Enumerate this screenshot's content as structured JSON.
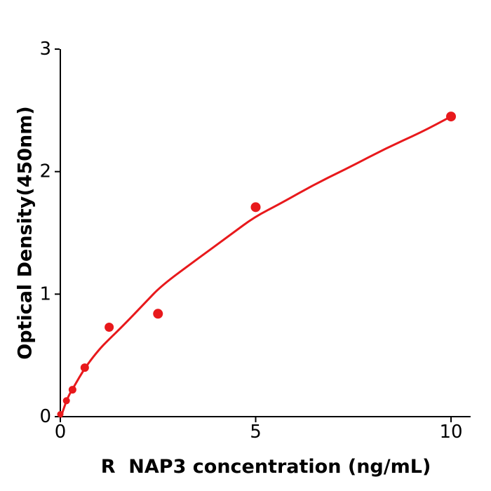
{
  "chart_data": {
    "type": "scatter",
    "title": "",
    "xlabel": "R  NAP3 concentration (ng/mL)",
    "ylabel": "Optical Density(450nm)",
    "xlim": [
      0,
      10.5
    ],
    "ylim": [
      0,
      3
    ],
    "x_ticks": [
      0,
      5,
      10
    ],
    "y_ticks": [
      0,
      1,
      2,
      3
    ],
    "grid": false,
    "legend": false,
    "background": "#ffffff",
    "axis_color": "#000000",
    "text_color": "#000000",
    "accent_color": "#e8191c",
    "series": [
      {
        "name": "standard-points",
        "type": "scatter",
        "color": "#e8191c",
        "x": [
          0,
          0.156,
          0.312,
          0.625,
          1.25,
          2.5,
          5,
          10
        ],
        "y": [
          0.02,
          0.13,
          0.22,
          0.4,
          0.73,
          0.84,
          1.71,
          2.45
        ]
      },
      {
        "name": "fit-curve",
        "type": "line",
        "color": "#e8191c",
        "x": [
          0.02,
          0.16,
          0.34,
          0.63,
          0.97,
          1.24,
          1.6,
          2.17,
          2.59,
          3.48,
          4.38,
          4.97,
          5.64,
          6.53,
          7.43,
          8.33,
          9.23,
          10.0
        ],
        "y": [
          0.0,
          0.14,
          0.24,
          0.4,
          0.54,
          0.63,
          0.74,
          0.93,
          1.07,
          1.28,
          1.49,
          1.63,
          1.74,
          1.9,
          2.04,
          2.19,
          2.32,
          2.45
        ]
      }
    ]
  }
}
